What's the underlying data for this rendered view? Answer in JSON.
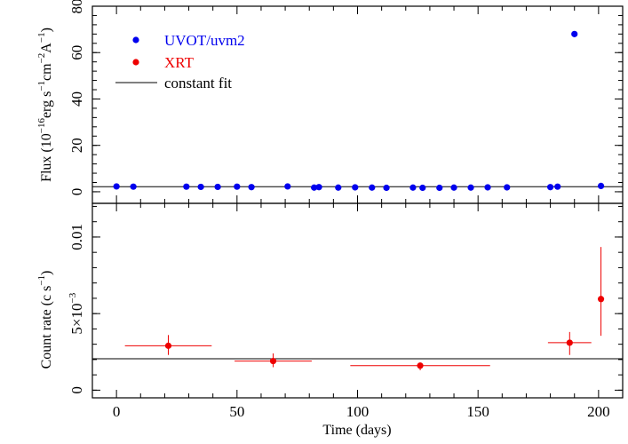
{
  "chart_data": [
    {
      "type": "scatter",
      "panel": "top",
      "ylabel_parts": [
        "Flux (10",
        "−16",
        "erg s",
        "−1",
        "cm",
        "−2",
        "A",
        "−1",
        ")"
      ],
      "xlim": [
        -10,
        210
      ],
      "ylim": [
        -5,
        80
      ],
      "yticks": [
        0,
        20,
        40,
        60,
        80
      ],
      "ytick_labels": [
        "0",
        "20",
        "40",
        "60",
        "80"
      ],
      "legend": {
        "placement": "top-left",
        "entries": [
          {
            "label": "UVOT/uvm2",
            "marker": "dot",
            "color": "#0000ee"
          },
          {
            "label": "XRT",
            "marker": "dot",
            "color": "#ee0000"
          },
          {
            "label": "constant fit",
            "marker": "line",
            "color": "#000000"
          }
        ]
      },
      "constant_fit": 2.2,
      "series": [
        {
          "name": "UVOT/uvm2",
          "color": "#0000ee",
          "x": [
            0,
            7,
            29,
            35,
            42,
            50,
            56,
            71,
            82,
            84,
            92,
            99,
            106,
            112,
            123,
            127,
            134,
            140,
            147,
            154,
            162,
            180,
            183,
            190,
            201
          ],
          "y": [
            2.3,
            2.2,
            2.2,
            2.1,
            2.1,
            2.2,
            2.0,
            2.3,
            1.8,
            2.0,
            1.8,
            1.9,
            1.8,
            1.7,
            1.8,
            1.7,
            1.7,
            1.8,
            1.8,
            1.9,
            1.9,
            2.0,
            2.2,
            68,
            2.5
          ]
        }
      ]
    },
    {
      "type": "scatter",
      "panel": "bottom",
      "xlabel": "Time (days)",
      "ylabel_parts": [
        "Count rate (c s",
        "−1",
        ")"
      ],
      "xlim": [
        -10,
        210
      ],
      "xticks": [
        0,
        50,
        100,
        150,
        200
      ],
      "xtick_labels": [
        "0",
        "50",
        "100",
        "150",
        "200"
      ],
      "ylim": [
        -0.0005,
        0.0122
      ],
      "yticks": [
        0,
        0.005,
        0.01
      ],
      "ytick_labels": [
        "0",
        "5×10",
        "0.01"
      ],
      "ytick_label_exponent": "−3",
      "constant_fit": 0.00205,
      "series": [
        {
          "name": "XRT",
          "color": "#ee0000",
          "x": [
            21.5,
            65,
            126,
            188,
            201
          ],
          "xerr": [
            18,
            16,
            29,
            9,
            0
          ],
          "y": [
            0.0029,
            0.0019,
            0.0016,
            0.0031,
            0.00595
          ],
          "yerr_low": [
            0.0006,
            0.0004,
            0.0003,
            0.0008,
            0.0024
          ],
          "yerr_high": [
            0.0007,
            0.0005,
            0.0002,
            0.0007,
            0.0034
          ]
        }
      ]
    }
  ]
}
